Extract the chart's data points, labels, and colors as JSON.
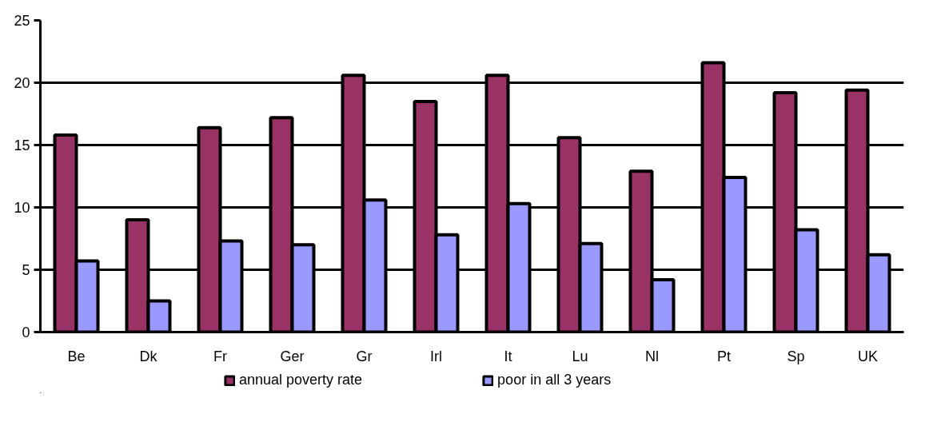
{
  "chart_data": {
    "type": "bar",
    "categories": [
      "Be",
      "Dk",
      "Fr",
      "Ger",
      "Gr",
      "Irl",
      "It",
      "Lu",
      "Nl",
      "Pt",
      "Sp",
      "UK"
    ],
    "series": [
      {
        "name": "annual poverty rate",
        "color": "#993366",
        "values": [
          15.8,
          9.0,
          16.4,
          17.2,
          20.6,
          18.5,
          20.6,
          15.6,
          12.9,
          21.6,
          19.2,
          19.4
        ]
      },
      {
        "name": "poor in all 3 years",
        "color": "#9999ff",
        "values": [
          5.7,
          2.5,
          7.3,
          7.0,
          10.6,
          7.8,
          10.3,
          7.1,
          4.2,
          12.4,
          8.2,
          6.2
        ]
      }
    ],
    "ylim": [
      0,
      25
    ],
    "yticks": [
      0,
      5,
      10,
      15,
      20,
      25
    ],
    "grid": "y",
    "legend": "bottom"
  }
}
